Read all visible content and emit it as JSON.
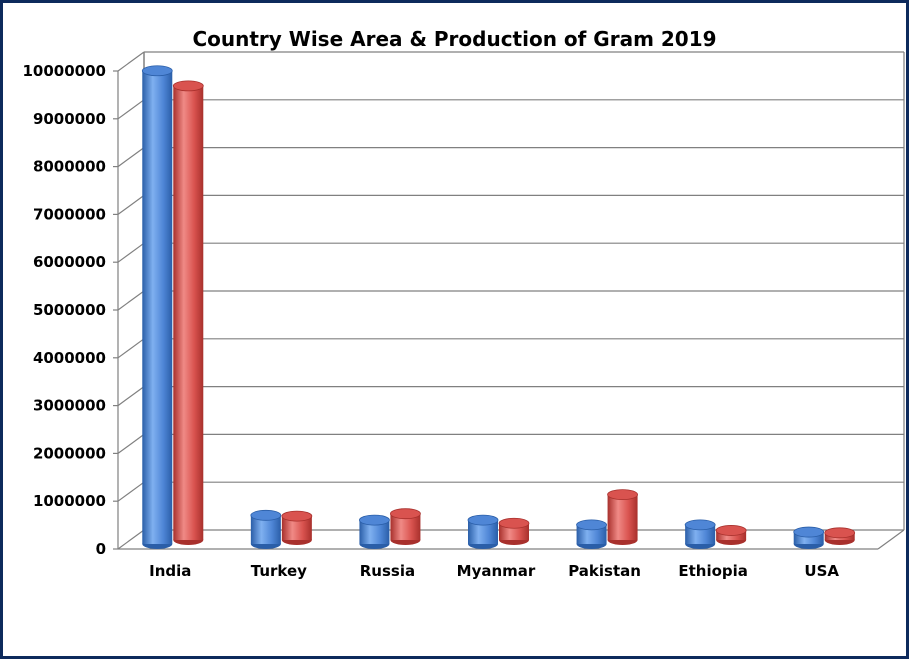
{
  "chart_data": {
    "type": "bar",
    "title": "Country Wise Area & Production of Gram 2019",
    "categories": [
      "India",
      "Turkey",
      "Russia",
      "Myanmar",
      "Pakistan",
      "Ethiopia",
      "USA"
    ],
    "series": [
      {
        "color": "#4f86d6",
        "values": [
          9900000,
          600000,
          500000,
          500000,
          400000,
          400000,
          250000
        ]
      },
      {
        "color": "#d9534f",
        "values": [
          9500000,
          500000,
          550000,
          350000,
          950000,
          200000,
          150000
        ]
      }
    ],
    "ylim": [
      0,
      10000000
    ],
    "yticks": [
      "0",
      "1000000",
      "2000000",
      "3000000",
      "4000000",
      "5000000",
      "6000000",
      "7000000",
      "8000000",
      "9000000",
      "10000000"
    ],
    "grid": true,
    "style": "3d-cylinder"
  }
}
